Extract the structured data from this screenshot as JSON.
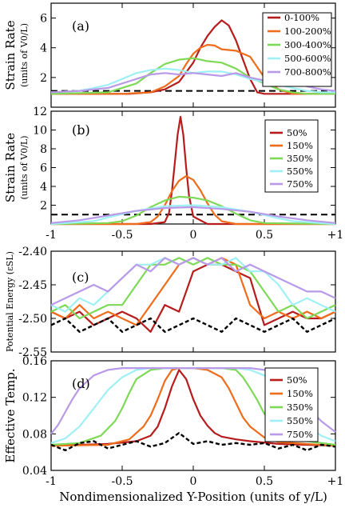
{
  "chart_data": [
    {
      "panel": "(a)",
      "type": "line",
      "ylabel": "Strain Rate",
      "ylabel_sub": "(units of V0/L)",
      "x_range": [
        -1,
        1
      ],
      "ylim": [
        0,
        7
      ],
      "yticks": [
        2,
        4,
        6
      ],
      "xticks": [],
      "reference_y": 1.1,
      "series": [
        {
          "name": "0-100%",
          "color": "#b71c1c",
          "x": [
            -1,
            -0.45,
            -0.3,
            -0.2,
            -0.1,
            0.0,
            0.05,
            0.1,
            0.15,
            0.2,
            0.25,
            0.3,
            0.35,
            0.4,
            0.45,
            0.5,
            0.6,
            1
          ],
          "y": [
            0.9,
            0.9,
            1.0,
            1.2,
            1.7,
            3.0,
            4.0,
            4.8,
            5.4,
            5.85,
            5.5,
            4.5,
            3.2,
            1.9,
            1.0,
            0.9,
            0.9,
            0.9
          ]
        },
        {
          "name": "100-200%",
          "color": "#ef6c1a",
          "x": [
            -1,
            -0.5,
            -0.3,
            -0.2,
            -0.1,
            -0.05,
            0,
            0.05,
            0.1,
            0.15,
            0.2,
            0.3,
            0.4,
            0.5,
            0.6,
            0.7,
            1
          ],
          "y": [
            0.9,
            0.9,
            1.0,
            1.4,
            2.1,
            2.9,
            3.6,
            4.0,
            4.2,
            4.15,
            3.9,
            3.8,
            3.4,
            2.0,
            1.2,
            0.9,
            0.9
          ]
        },
        {
          "name": "300-400%",
          "color": "#7ed957",
          "x": [
            -1,
            -0.6,
            -0.4,
            -0.3,
            -0.2,
            -0.1,
            0,
            0.1,
            0.2,
            0.3,
            0.4,
            0.5,
            0.6,
            0.7,
            0.8,
            1
          ],
          "y": [
            0.9,
            1.0,
            1.6,
            2.3,
            2.9,
            3.2,
            3.3,
            3.1,
            3.0,
            2.6,
            2.0,
            1.6,
            1.2,
            1.0,
            0.9,
            0.9
          ]
        },
        {
          "name": "500-600%",
          "color": "#9ff0f5",
          "x": [
            -1,
            -0.8,
            -0.6,
            -0.5,
            -0.4,
            -0.3,
            -0.2,
            -0.1,
            0,
            0.1,
            0.2,
            0.3,
            0.4,
            0.5,
            0.6,
            0.7,
            0.8,
            0.9,
            1
          ],
          "y": [
            1.0,
            1.1,
            1.5,
            1.9,
            2.3,
            2.5,
            2.6,
            2.5,
            2.3,
            2.4,
            2.4,
            2.2,
            1.9,
            1.7,
            1.5,
            1.3,
            1.1,
            1.0,
            1.0
          ]
        },
        {
          "name": "700-800%",
          "color": "#b89ae8",
          "x": [
            -1,
            -0.8,
            -0.6,
            -0.5,
            -0.4,
            -0.3,
            -0.2,
            -0.1,
            0,
            0.1,
            0.2,
            0.3,
            0.4,
            0.5,
            0.6,
            0.7,
            0.8,
            0.9,
            1
          ],
          "y": [
            1.0,
            1.1,
            1.3,
            1.6,
            1.9,
            2.2,
            2.3,
            2.2,
            2.3,
            2.2,
            2.1,
            2.3,
            2.0,
            1.8,
            1.6,
            1.7,
            1.4,
            1.2,
            1.1
          ]
        }
      ]
    },
    {
      "panel": "(b)",
      "type": "line",
      "ylabel": "Strain Rate",
      "ylabel_sub": "(units of V0/L)",
      "x_range": [
        -1,
        1
      ],
      "ylim": [
        0,
        12
      ],
      "yticks": [
        2,
        4,
        6,
        8,
        10,
        12
      ],
      "xticks": [
        -1,
        -0.5,
        0,
        0.5,
        1
      ],
      "xticklabels": [
        "-1",
        "-0.5",
        "0",
        "0.5",
        "+1"
      ],
      "reference_y": 1.0,
      "series": [
        {
          "name": "50%",
          "color": "#b71c1c",
          "x": [
            -1,
            -0.3,
            -0.2,
            -0.17,
            -0.15,
            -0.13,
            -0.11,
            -0.09,
            -0.07,
            -0.05,
            -0.03,
            0.0,
            0.1,
            1
          ],
          "y": [
            0,
            0,
            0.2,
            1.2,
            3.5,
            6.5,
            9.5,
            11.4,
            9.5,
            6.0,
            3.0,
            0.8,
            0,
            0
          ]
        },
        {
          "name": "150%",
          "color": "#ef6c1a",
          "x": [
            -1,
            -0.4,
            -0.3,
            -0.25,
            -0.2,
            -0.15,
            -0.1,
            -0.05,
            0,
            0.05,
            0.1,
            0.15,
            0.2,
            0.3,
            1
          ],
          "y": [
            0,
            0,
            0.2,
            0.8,
            2.0,
            3.5,
            4.6,
            5.1,
            4.7,
            3.6,
            2.2,
            1.0,
            0.3,
            0,
            0
          ]
        },
        {
          "name": "350%",
          "color": "#7ed957",
          "x": [
            -1,
            -0.6,
            -0.5,
            -0.4,
            -0.3,
            -0.2,
            -0.1,
            0,
            0.1,
            0.2,
            0.3,
            0.4,
            0.5,
            1
          ],
          "y": [
            0,
            0.1,
            0.3,
            0.9,
            1.8,
            2.5,
            2.9,
            2.8,
            2.5,
            1.9,
            1.1,
            0.4,
            0.1,
            0
          ]
        },
        {
          "name": "550%",
          "color": "#9ff0f5",
          "x": [
            -1,
            -0.7,
            -0.6,
            -0.4,
            -0.2,
            0,
            0.2,
            0.4,
            0.6,
            0.7,
            1
          ],
          "y": [
            0,
            0.3,
            0.7,
            1.4,
            1.9,
            2.0,
            1.8,
            1.3,
            0.6,
            0.3,
            0
          ]
        },
        {
          "name": "750%",
          "color": "#b89ae8",
          "x": [
            -1,
            -0.8,
            -0.6,
            -0.4,
            -0.2,
            0,
            0.2,
            0.4,
            0.6,
            0.8,
            1
          ],
          "y": [
            0.1,
            0.4,
            0.9,
            1.4,
            1.7,
            1.8,
            1.6,
            1.3,
            0.8,
            0.4,
            0.1
          ]
        }
      ]
    },
    {
      "panel": "(c)",
      "type": "line",
      "ylabel": "Potential Energy (εSL)",
      "x_range": [
        -1,
        1
      ],
      "ylim": [
        -2.55,
        -2.4
      ],
      "yticks": [
        -2.55,
        -2.5,
        -2.45,
        -2.4
      ],
      "yticklabels": [
        "-2.55",
        "-2.50",
        "-2.45",
        "-2.40"
      ],
      "xticks": [],
      "series": [
        {
          "name": "50%",
          "color": "#b71c1c",
          "x": [
            -1,
            -0.9,
            -0.8,
            -0.7,
            -0.6,
            -0.5,
            -0.4,
            -0.3,
            -0.2,
            -0.1,
            0,
            0.1,
            0.2,
            0.3,
            0.4,
            0.5,
            0.6,
            0.7,
            0.8,
            0.9,
            1
          ],
          "y": [
            -2.49,
            -2.5,
            -2.49,
            -2.51,
            -2.5,
            -2.49,
            -2.5,
            -2.52,
            -2.48,
            -2.49,
            -2.43,
            -2.42,
            -2.42,
            -2.43,
            -2.44,
            -2.51,
            -2.5,
            -2.49,
            -2.5,
            -2.5,
            -2.49
          ]
        },
        {
          "name": "150%",
          "color": "#ef6c1a",
          "x": [
            -1,
            -0.9,
            -0.8,
            -0.7,
            -0.6,
            -0.5,
            -0.4,
            -0.3,
            -0.2,
            -0.1,
            0,
            0.1,
            0.2,
            0.3,
            0.4,
            0.5,
            0.6,
            0.7,
            0.8,
            0.9,
            1
          ],
          "y": [
            -2.49,
            -2.5,
            -2.48,
            -2.5,
            -2.49,
            -2.5,
            -2.51,
            -2.48,
            -2.45,
            -2.42,
            -2.41,
            -2.42,
            -2.41,
            -2.42,
            -2.48,
            -2.5,
            -2.49,
            -2.5,
            -2.49,
            -2.5,
            -2.49
          ]
        },
        {
          "name": "350%",
          "color": "#7ed957",
          "x": [
            -1,
            -0.9,
            -0.8,
            -0.7,
            -0.6,
            -0.5,
            -0.4,
            -0.3,
            -0.2,
            -0.1,
            0,
            0.1,
            0.2,
            0.3,
            0.4,
            0.5,
            0.6,
            0.7,
            0.8,
            0.9,
            1
          ],
          "y": [
            -2.49,
            -2.48,
            -2.5,
            -2.49,
            -2.48,
            -2.48,
            -2.45,
            -2.42,
            -2.42,
            -2.41,
            -2.42,
            -2.41,
            -2.42,
            -2.42,
            -2.43,
            -2.46,
            -2.49,
            -2.48,
            -2.5,
            -2.49,
            -2.48
          ]
        },
        {
          "name": "550%",
          "color": "#9ff0f5",
          "x": [
            -1,
            -0.9,
            -0.8,
            -0.7,
            -0.6,
            -0.5,
            -0.4,
            -0.3,
            -0.2,
            -0.1,
            0,
            0.1,
            0.2,
            0.3,
            0.4,
            0.5,
            0.6,
            0.7,
            0.8,
            0.9,
            1
          ],
          "y": [
            -2.48,
            -2.49,
            -2.47,
            -2.48,
            -2.46,
            -2.44,
            -2.42,
            -2.42,
            -2.41,
            -2.42,
            -2.41,
            -2.42,
            -2.42,
            -2.41,
            -2.43,
            -2.43,
            -2.45,
            -2.48,
            -2.47,
            -2.48,
            -2.49
          ]
        },
        {
          "name": "750%",
          "color": "#b89ae8",
          "x": [
            -1,
            -0.9,
            -0.8,
            -0.7,
            -0.6,
            -0.5,
            -0.4,
            -0.3,
            -0.2,
            -0.1,
            0,
            0.1,
            0.2,
            0.3,
            0.4,
            0.5,
            0.6,
            0.7,
            0.8,
            0.9,
            1
          ],
          "y": [
            -2.48,
            -2.47,
            -2.46,
            -2.45,
            -2.46,
            -2.44,
            -2.42,
            -2.43,
            -2.41,
            -2.42,
            -2.41,
            -2.42,
            -2.41,
            -2.43,
            -2.42,
            -2.43,
            -2.44,
            -2.45,
            -2.46,
            -2.46,
            -2.47
          ]
        },
        {
          "name": "",
          "color": "#000000",
          "dashed": true,
          "x": [
            -1,
            -0.9,
            -0.8,
            -0.7,
            -0.6,
            -0.5,
            -0.4,
            -0.3,
            -0.2,
            -0.1,
            0,
            0.1,
            0.2,
            0.3,
            0.4,
            0.5,
            0.6,
            0.7,
            0.8,
            0.9,
            1
          ],
          "y": [
            -2.51,
            -2.5,
            -2.52,
            -2.51,
            -2.5,
            -2.52,
            -2.51,
            -2.5,
            -2.52,
            -2.51,
            -2.5,
            -2.51,
            -2.52,
            -2.5,
            -2.51,
            -2.52,
            -2.51,
            -2.5,
            -2.52,
            -2.51,
            -2.5
          ]
        }
      ]
    },
    {
      "panel": "(d)",
      "type": "line",
      "ylabel": "Effective Temp.",
      "xlabel": "Nondimensionalized Y-Position (units of y/L)",
      "x_range": [
        -1,
        1
      ],
      "ylim": [
        0.04,
        0.16
      ],
      "yticks": [
        0.04,
        0.08,
        0.12,
        0.16
      ],
      "yticklabels": [
        "0.04",
        "0.08",
        "0.12",
        "0.16"
      ],
      "xticks": [
        -1,
        -0.5,
        0,
        0.5,
        1
      ],
      "xticklabels": [
        "-1",
        "-0.5",
        "0",
        "0.5",
        "+1"
      ],
      "series": [
        {
          "name": "50%",
          "color": "#b71c1c",
          "x": [
            -1,
            -0.6,
            -0.4,
            -0.3,
            -0.25,
            -0.2,
            -0.15,
            -0.1,
            -0.05,
            0,
            0.05,
            0.1,
            0.15,
            0.2,
            0.3,
            0.4,
            0.6,
            1
          ],
          "y": [
            0.067,
            0.069,
            0.072,
            0.078,
            0.088,
            0.108,
            0.132,
            0.15,
            0.14,
            0.118,
            0.1,
            0.089,
            0.081,
            0.077,
            0.074,
            0.072,
            0.069,
            0.067
          ]
        },
        {
          "name": "150%",
          "color": "#ef6c1a",
          "x": [
            -1,
            -0.6,
            -0.45,
            -0.35,
            -0.3,
            -0.25,
            -0.2,
            -0.15,
            -0.1,
            0,
            0.1,
            0.2,
            0.25,
            0.3,
            0.35,
            0.4,
            0.5,
            0.6,
            1
          ],
          "y": [
            0.067,
            0.068,
            0.074,
            0.088,
            0.1,
            0.118,
            0.138,
            0.15,
            0.152,
            0.152,
            0.15,
            0.142,
            0.13,
            0.114,
            0.098,
            0.088,
            0.076,
            0.071,
            0.067
          ]
        },
        {
          "name": "350%",
          "color": "#7ed957",
          "x": [
            -1,
            -0.8,
            -0.65,
            -0.55,
            -0.5,
            -0.45,
            -0.4,
            -0.3,
            -0.2,
            0,
            0.2,
            0.3,
            0.35,
            0.4,
            0.45,
            0.5,
            0.6,
            0.8,
            1
          ],
          "y": [
            0.068,
            0.07,
            0.078,
            0.094,
            0.108,
            0.125,
            0.14,
            0.15,
            0.152,
            0.152,
            0.152,
            0.15,
            0.142,
            0.13,
            0.117,
            0.102,
            0.085,
            0.072,
            0.068
          ]
        },
        {
          "name": "550%",
          "color": "#9ff0f5",
          "x": [
            -1,
            -0.9,
            -0.8,
            -0.7,
            -0.6,
            -0.5,
            -0.4,
            -0.3,
            -0.2,
            0,
            0.2,
            0.3,
            0.4,
            0.5,
            0.55,
            0.6,
            0.7,
            0.8,
            0.9,
            1
          ],
          "y": [
            0.07,
            0.075,
            0.088,
            0.108,
            0.128,
            0.142,
            0.15,
            0.152,
            0.152,
            0.152,
            0.152,
            0.152,
            0.15,
            0.144,
            0.136,
            0.126,
            0.106,
            0.09,
            0.078,
            0.072
          ]
        },
        {
          "name": "750%",
          "color": "#b89ae8",
          "x": [
            -1,
            -0.95,
            -0.9,
            -0.85,
            -0.8,
            -0.7,
            -0.6,
            -0.5,
            -0.4,
            -0.2,
            0,
            0.2,
            0.4,
            0.5,
            0.6,
            0.65,
            0.7,
            0.8,
            0.9,
            1
          ],
          "y": [
            0.08,
            0.09,
            0.104,
            0.118,
            0.13,
            0.144,
            0.15,
            0.152,
            0.152,
            0.152,
            0.152,
            0.152,
            0.152,
            0.15,
            0.144,
            0.138,
            0.128,
            0.11,
            0.094,
            0.082
          ]
        },
        {
          "name": "",
          "color": "#000000",
          "dashed": true,
          "x": [
            -1,
            -0.9,
            -0.8,
            -0.7,
            -0.6,
            -0.5,
            -0.4,
            -0.3,
            -0.2,
            -0.1,
            0,
            0.1,
            0.2,
            0.3,
            0.4,
            0.5,
            0.6,
            0.7,
            0.8,
            0.9,
            1
          ],
          "y": [
            0.068,
            0.062,
            0.07,
            0.072,
            0.064,
            0.068,
            0.072,
            0.066,
            0.07,
            0.081,
            0.069,
            0.072,
            0.068,
            0.07,
            0.068,
            0.07,
            0.064,
            0.068,
            0.062,
            0.068,
            0.066
          ]
        }
      ]
    }
  ]
}
